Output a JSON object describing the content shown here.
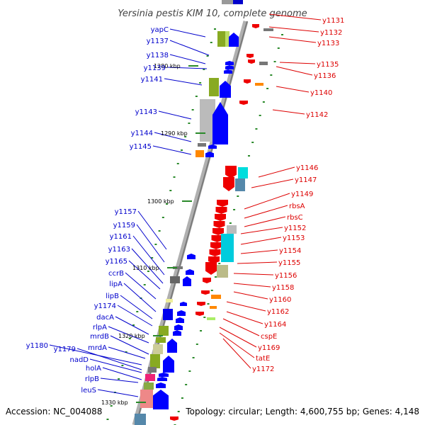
{
  "title": "Yersinia pestis KIM 10, complete genome",
  "footer": {
    "accession": "Accession: NC_004088",
    "topology": "Topology: circular; Length: 4,600,755 bp; Genes: 4,148"
  },
  "colors": {
    "left_labels": "#0000cc",
    "right_labels": "#dd0000",
    "axis": "#999999",
    "ticks": "#2a8a2a"
  },
  "scale_labels": [
    "1280 kbp",
    "1290 kbp",
    "1300 kbp",
    "1310 kbp",
    "1320 kbp",
    "1330 kbp"
  ],
  "left_genes": [
    "yapC",
    "y1137",
    "y1138",
    "y1139",
    "y1141",
    "y1143",
    "y1144",
    "y1145",
    "y1157",
    "y1159",
    "y1161",
    "y1163",
    "y1165",
    "ccrB",
    "lipA",
    "lipB",
    "y1174",
    "dacA",
    "rlpA",
    "mrdB",
    "mrdA",
    "y1180",
    "y1179",
    "nadD",
    "holA",
    "rlpB",
    "leuS"
  ],
  "right_genes": [
    "y1131",
    "y1132",
    "y1133",
    "y1135",
    "y1136",
    "y1140",
    "y1142",
    "y1146",
    "y1147",
    "y1149",
    "rbsA",
    "rbsC",
    "y1152",
    "y1153",
    "y1154",
    "y1155",
    "y1156",
    "y1158",
    "y1160",
    "y1162",
    "y1164",
    "cspE",
    "y1169",
    "tatE",
    "y1172"
  ]
}
